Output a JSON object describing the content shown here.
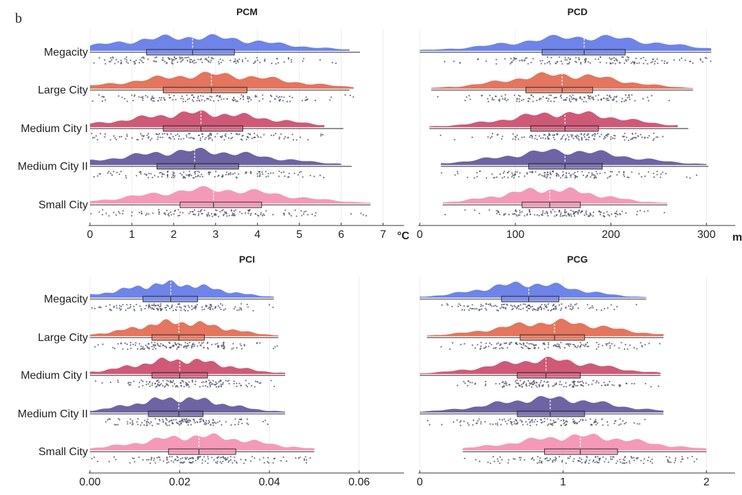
{
  "figure": {
    "panel_letter": "b",
    "categories": [
      "Megacity",
      "Large City",
      "Medium City I",
      "Medium City II",
      "Small City"
    ],
    "colors": {
      "Megacity": "#6f84e8",
      "Large City": "#e4755e",
      "Medium City I": "#cf5a78",
      "Medium City II": "#6e64a4",
      "Small City": "#f49ab8",
      "points": "#4a5063",
      "axis": "#333333",
      "median_line": "#ffffff"
    }
  },
  "chart_data": [
    {
      "type": "raincloud",
      "title": "PCM",
      "unit_label": "°C",
      "xlim": [
        0,
        7.5
      ],
      "ticks": [
        0,
        1,
        2,
        3,
        4,
        5,
        6,
        7
      ],
      "tick_labels": [
        "0",
        "1",
        "2",
        "3",
        "4",
        "5",
        "6",
        "7"
      ],
      "series": [
        {
          "name": "Megacity",
          "q1": 1.35,
          "median": 2.45,
          "q3": 3.45,
          "mean": 2.45,
          "whisker_low": 0.0,
          "whisker_high": 6.45,
          "density_min": 0.0,
          "density_max": 6.2
        },
        {
          "name": "Large City",
          "q1": 1.75,
          "median": 2.9,
          "q3": 3.75,
          "mean": 2.9,
          "whisker_low": 0.0,
          "whisker_high": 6.2,
          "density_min": 0.0,
          "density_max": 6.3
        },
        {
          "name": "Medium City I",
          "q1": 1.75,
          "median": 2.65,
          "q3": 3.65,
          "mean": 2.65,
          "whisker_low": 0.0,
          "whisker_high": 6.05,
          "density_min": 0.0,
          "density_max": 5.6
        },
        {
          "name": "Medium City II",
          "q1": 1.6,
          "median": 2.5,
          "q3": 3.55,
          "mean": 2.5,
          "whisker_low": 0.0,
          "whisker_high": 6.25,
          "density_min": 0.0,
          "density_max": 6.0
        },
        {
          "name": "Small City",
          "q1": 2.15,
          "median": 2.95,
          "q3": 4.1,
          "mean": 2.95,
          "whisker_low": 0.0,
          "whisker_high": 6.7,
          "density_min": 0.0,
          "density_max": 6.7
        }
      ]
    },
    {
      "type": "raincloud",
      "title": "PCD",
      "unit_label": "m",
      "xlim": [
        0,
        330
      ],
      "ticks": [
        0,
        100,
        200,
        300
      ],
      "tick_labels": [
        "0",
        "100",
        "200",
        "300"
      ],
      "series": [
        {
          "name": "Megacity",
          "q1": 128,
          "median": 172,
          "q3": 215,
          "mean": 172,
          "whisker_low": 0,
          "whisker_high": 305,
          "density_min": 0,
          "density_max": 305
        },
        {
          "name": "Large City",
          "q1": 111,
          "median": 149,
          "q3": 181,
          "mean": 149,
          "whisker_low": 12,
          "whisker_high": 286,
          "density_min": 12,
          "density_max": 286
        },
        {
          "name": "Medium City I",
          "q1": 116,
          "median": 152,
          "q3": 187,
          "mean": 152,
          "whisker_low": 10,
          "whisker_high": 281,
          "density_min": 10,
          "density_max": 270
        },
        {
          "name": "Medium City II",
          "q1": 114,
          "median": 152,
          "q3": 191,
          "mean": 152,
          "whisker_low": 22,
          "whisker_high": 302,
          "density_min": 22,
          "density_max": 300
        },
        {
          "name": "Small City",
          "q1": 107,
          "median": 136,
          "q3": 168,
          "mean": 136,
          "whisker_low": 24,
          "whisker_high": 259,
          "density_min": 24,
          "density_max": 259
        }
      ]
    },
    {
      "type": "raincloud",
      "title": "PCI",
      "unit_label": "",
      "xlim": [
        0,
        0.07
      ],
      "ticks": [
        0,
        0.02,
        0.04,
        0.06
      ],
      "tick_labels": [
        "0.00",
        "0.02",
        "0.04",
        "0.06"
      ],
      "series": [
        {
          "name": "Megacity",
          "q1": 0.0118,
          "median": 0.018,
          "q3": 0.024,
          "mean": 0.018,
          "whisker_low": 0.0,
          "whisker_high": 0.041,
          "density_min": 0.0,
          "density_max": 0.041
        },
        {
          "name": "Large City",
          "q1": 0.0138,
          "median": 0.0198,
          "q3": 0.0255,
          "mean": 0.0198,
          "whisker_low": 0.0,
          "whisker_high": 0.042,
          "density_min": 0.0,
          "density_max": 0.042
        },
        {
          "name": "Medium City I",
          "q1": 0.0138,
          "median": 0.02,
          "q3": 0.0262,
          "mean": 0.02,
          "whisker_low": 0.0,
          "whisker_high": 0.0435,
          "density_min": 0.0,
          "density_max": 0.0435
        },
        {
          "name": "Medium City II",
          "q1": 0.013,
          "median": 0.0198,
          "q3": 0.0252,
          "mean": 0.0198,
          "whisker_low": 0.0,
          "whisker_high": 0.0435,
          "density_min": 0.0,
          "density_max": 0.0435
        },
        {
          "name": "Small City",
          "q1": 0.0175,
          "median": 0.0243,
          "q3": 0.0325,
          "mean": 0.0243,
          "whisker_low": 0.0,
          "whisker_high": 0.05,
          "density_min": 0.0,
          "density_max": 0.05
        }
      ]
    },
    {
      "type": "raincloud",
      "title": "PCG",
      "unit_label": "",
      "xlim": [
        0,
        2.2
      ],
      "ticks": [
        0,
        1,
        2
      ],
      "tick_labels": [
        "0",
        "1",
        "2"
      ],
      "series": [
        {
          "name": "Megacity",
          "q1": 0.57,
          "median": 0.76,
          "q3": 0.97,
          "mean": 0.76,
          "whisker_low": 0.0,
          "whisker_high": 1.58,
          "density_min": 0.0,
          "density_max": 1.58
        },
        {
          "name": "Large City",
          "q1": 0.7,
          "median": 0.94,
          "q3": 1.15,
          "mean": 0.94,
          "whisker_low": 0.05,
          "whisker_high": 1.7,
          "density_min": 0.05,
          "density_max": 1.7
        },
        {
          "name": "Medium City I",
          "q1": 0.68,
          "median": 0.88,
          "q3": 1.12,
          "mean": 0.88,
          "whisker_low": 0.0,
          "whisker_high": 1.68,
          "density_min": 0.0,
          "density_max": 1.68
        },
        {
          "name": "Medium City II",
          "q1": 0.68,
          "median": 0.91,
          "q3": 1.15,
          "mean": 0.91,
          "whisker_low": 0.0,
          "whisker_high": 1.7,
          "density_min": 0.0,
          "density_max": 1.7
        },
        {
          "name": "Small City",
          "q1": 0.87,
          "median": 1.12,
          "q3": 1.38,
          "mean": 1.12,
          "whisker_low": 0.3,
          "whisker_high": 2.0,
          "density_min": 0.3,
          "density_max": 2.0
        }
      ]
    }
  ]
}
